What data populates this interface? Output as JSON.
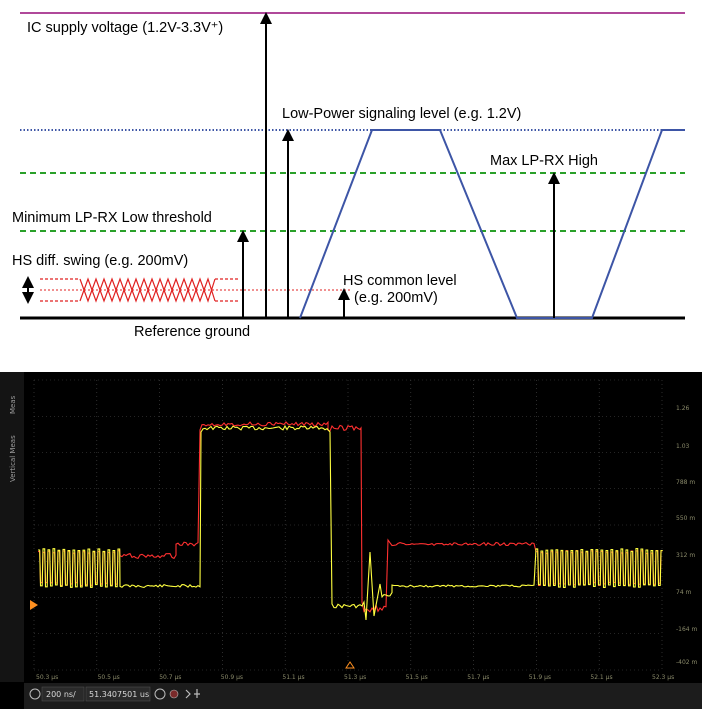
{
  "diagram": {
    "labels": {
      "ic_supply": "IC supply voltage (1.2V-3.3V⁺)",
      "lp_level": "Low-Power signaling level (e.g. 1.2V)",
      "max_lprx": "Max LP-RX High",
      "min_lprx": "Minimum LP-RX Low threshold",
      "hs_swing": "HS diff. swing (e.g. 200mV)",
      "hs_common_1": "HS common level",
      "hs_common_2": "(e.g. 200mV)",
      "ref_ground": "Reference ground"
    },
    "colors": {
      "supply": "#b0489a",
      "lp_level": "#3d55a6",
      "threshold": "#2aa02a",
      "hs_signal": "#e02020",
      "ground": "#000000"
    }
  },
  "scope": {
    "side_tabs": [
      "Meas",
      "Vertical Meas"
    ],
    "y_ticks": [
      "1.26",
      "1.03",
      "788 m",
      "550 m",
      "312 m",
      "74 m",
      "-164 m",
      "-402 m"
    ],
    "x_ticks": [
      "50.3 µs",
      "50.5 µs",
      "50.7 µs",
      "50.9 µs",
      "51.1 µs",
      "51.3 µs",
      "51.5 µs",
      "51.7 µs",
      "51.9 µs",
      "52.1 µs",
      "52.3 µs"
    ],
    "status_bar": {
      "timebase": "200 ns/",
      "position": "51.3407501 us"
    },
    "colors": {
      "ch1": "#ffff40",
      "ch2": "#ff3030",
      "grid": "#4a4a4a",
      "background": "#000000"
    }
  }
}
